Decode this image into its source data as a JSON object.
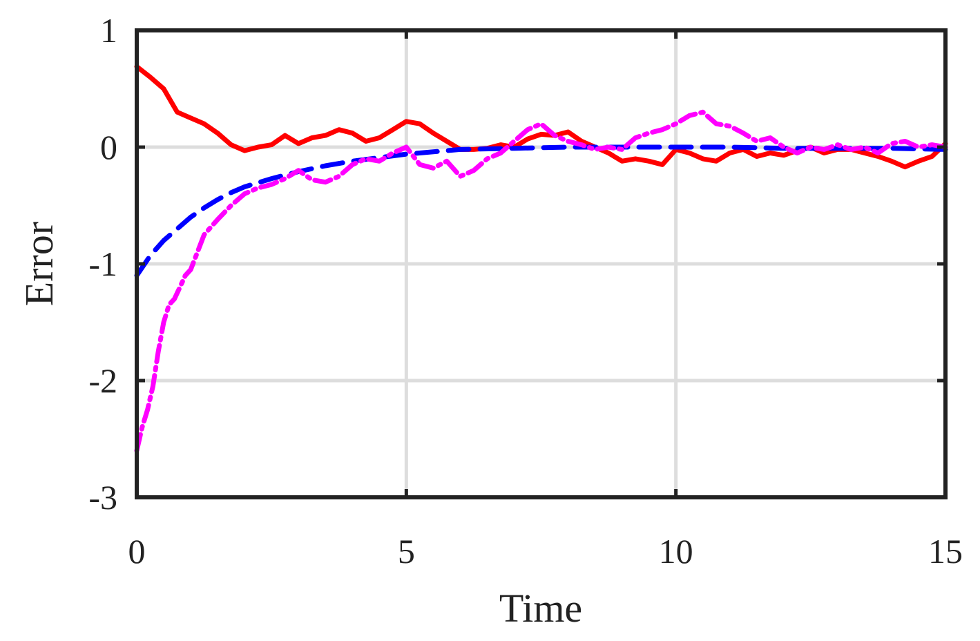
{
  "chart_data": {
    "type": "line",
    "title": "",
    "xlabel": "Time",
    "ylabel": "Error",
    "xlim": [
      0,
      15
    ],
    "ylim": [
      -3,
      1
    ],
    "xticks": [
      "0",
      "5",
      "10",
      "15"
    ],
    "yticks": [
      "1",
      "0",
      "-1",
      "-2",
      "-3"
    ],
    "grid": true,
    "legend": "none",
    "series": [
      {
        "color": "#ff0000",
        "style": "solid",
        "x": [
          0,
          0.25,
          0.5,
          0.75,
          1.0,
          1.25,
          1.5,
          1.75,
          2.0,
          2.25,
          2.5,
          2.75,
          3.0,
          3.25,
          3.5,
          3.75,
          4.0,
          4.25,
          4.5,
          4.75,
          5.0,
          5.25,
          5.5,
          5.75,
          6.0,
          6.25,
          6.5,
          6.75,
          7.0,
          7.25,
          7.5,
          7.75,
          8.0,
          8.25,
          8.5,
          8.75,
          9.0,
          9.25,
          9.5,
          9.75,
          10.0,
          10.25,
          10.5,
          10.75,
          11.0,
          11.25,
          11.5,
          11.75,
          12.0,
          12.25,
          12.5,
          12.75,
          13.0,
          13.25,
          13.5,
          13.75,
          14.0,
          14.25,
          14.5,
          14.75,
          15.0
        ],
        "values": [
          0.69,
          0.6,
          0.5,
          0.3,
          0.25,
          0.2,
          0.12,
          0.02,
          -0.03,
          0.0,
          0.02,
          0.1,
          0.03,
          0.08,
          0.1,
          0.15,
          0.12,
          0.05,
          0.08,
          0.15,
          0.22,
          0.2,
          0.12,
          0.05,
          -0.02,
          -0.02,
          -0.01,
          0.02,
          0.0,
          0.07,
          0.11,
          0.1,
          0.13,
          0.05,
          0.0,
          -0.05,
          -0.12,
          -0.1,
          -0.12,
          -0.15,
          -0.02,
          -0.05,
          -0.1,
          -0.12,
          -0.05,
          -0.02,
          -0.08,
          -0.05,
          -0.07,
          -0.03,
          0.0,
          -0.05,
          -0.02,
          -0.02,
          -0.05,
          -0.08,
          -0.12,
          -0.17,
          -0.12,
          -0.08,
          0.03
        ]
      },
      {
        "color": "#0000ff",
        "style": "dashed",
        "x": [
          0,
          0.25,
          0.5,
          0.75,
          1.0,
          1.25,
          1.5,
          1.75,
          2.0,
          2.5,
          3.0,
          3.5,
          4.0,
          4.5,
          5.0,
          5.5,
          6.0,
          7.0,
          8.0,
          9.0,
          10.0,
          11.0,
          12.0,
          13.0,
          14.0,
          15.0
        ],
        "values": [
          -1.1,
          -0.93,
          -0.8,
          -0.7,
          -0.6,
          -0.52,
          -0.45,
          -0.39,
          -0.34,
          -0.27,
          -0.21,
          -0.16,
          -0.12,
          -0.09,
          -0.06,
          -0.04,
          -0.02,
          -0.01,
          0.0,
          0.0,
          0.0,
          0.0,
          -0.01,
          -0.01,
          -0.01,
          -0.02
        ]
      },
      {
        "color": "#ff00ff",
        "style": "dashdot",
        "x": [
          0,
          0.1,
          0.2,
          0.3,
          0.4,
          0.5,
          0.6,
          0.7,
          0.8,
          0.9,
          1.0,
          1.25,
          1.5,
          1.75,
          2.0,
          2.25,
          2.5,
          2.75,
          3.0,
          3.25,
          3.5,
          3.75,
          4.0,
          4.25,
          4.5,
          4.75,
          5.0,
          5.25,
          5.5,
          5.75,
          6.0,
          6.25,
          6.5,
          6.75,
          7.0,
          7.25,
          7.5,
          7.75,
          8.0,
          8.25,
          8.5,
          8.75,
          9.0,
          9.25,
          9.5,
          9.75,
          10.0,
          10.25,
          10.5,
          10.75,
          11.0,
          11.25,
          11.5,
          11.75,
          12.0,
          12.25,
          12.5,
          12.75,
          13.0,
          13.25,
          13.5,
          13.75,
          14.0,
          14.25,
          14.5,
          14.75,
          15.0
        ],
        "values": [
          -2.6,
          -2.4,
          -2.25,
          -2.05,
          -1.75,
          -1.5,
          -1.35,
          -1.3,
          -1.2,
          -1.1,
          -1.05,
          -0.75,
          -0.62,
          -0.5,
          -0.4,
          -0.35,
          -0.32,
          -0.27,
          -0.2,
          -0.28,
          -0.3,
          -0.25,
          -0.15,
          -0.1,
          -0.12,
          -0.05,
          0.0,
          -0.15,
          -0.18,
          -0.12,
          -0.25,
          -0.2,
          -0.1,
          -0.05,
          0.05,
          0.15,
          0.2,
          0.1,
          0.05,
          0.02,
          -0.02,
          0.0,
          -0.02,
          0.08,
          0.12,
          0.15,
          0.2,
          0.27,
          0.3,
          0.2,
          0.18,
          0.12,
          0.05,
          0.08,
          0.0,
          -0.05,
          0.0,
          -0.02,
          0.02,
          -0.02,
          0.0,
          -0.05,
          0.03,
          0.05,
          0.0,
          0.02,
          0.0
        ]
      }
    ]
  }
}
